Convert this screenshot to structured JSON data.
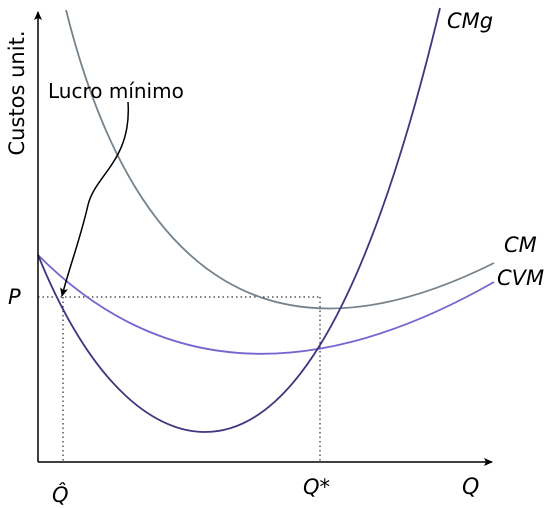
{
  "axes": {
    "y_label": "Custos unit.",
    "x_label": "Q"
  },
  "curves": {
    "cmg": {
      "label": "CMg",
      "color": "#3d3780"
    },
    "cm": {
      "label": "CM",
      "color": "#77838c"
    },
    "cvm": {
      "label": "CVM",
      "color": "#7b63cf"
    }
  },
  "markers": {
    "price": "P",
    "q_hat": "Q̂",
    "q_star": "Q*"
  },
  "annotation": {
    "text": "Lucro mínimo"
  }
}
